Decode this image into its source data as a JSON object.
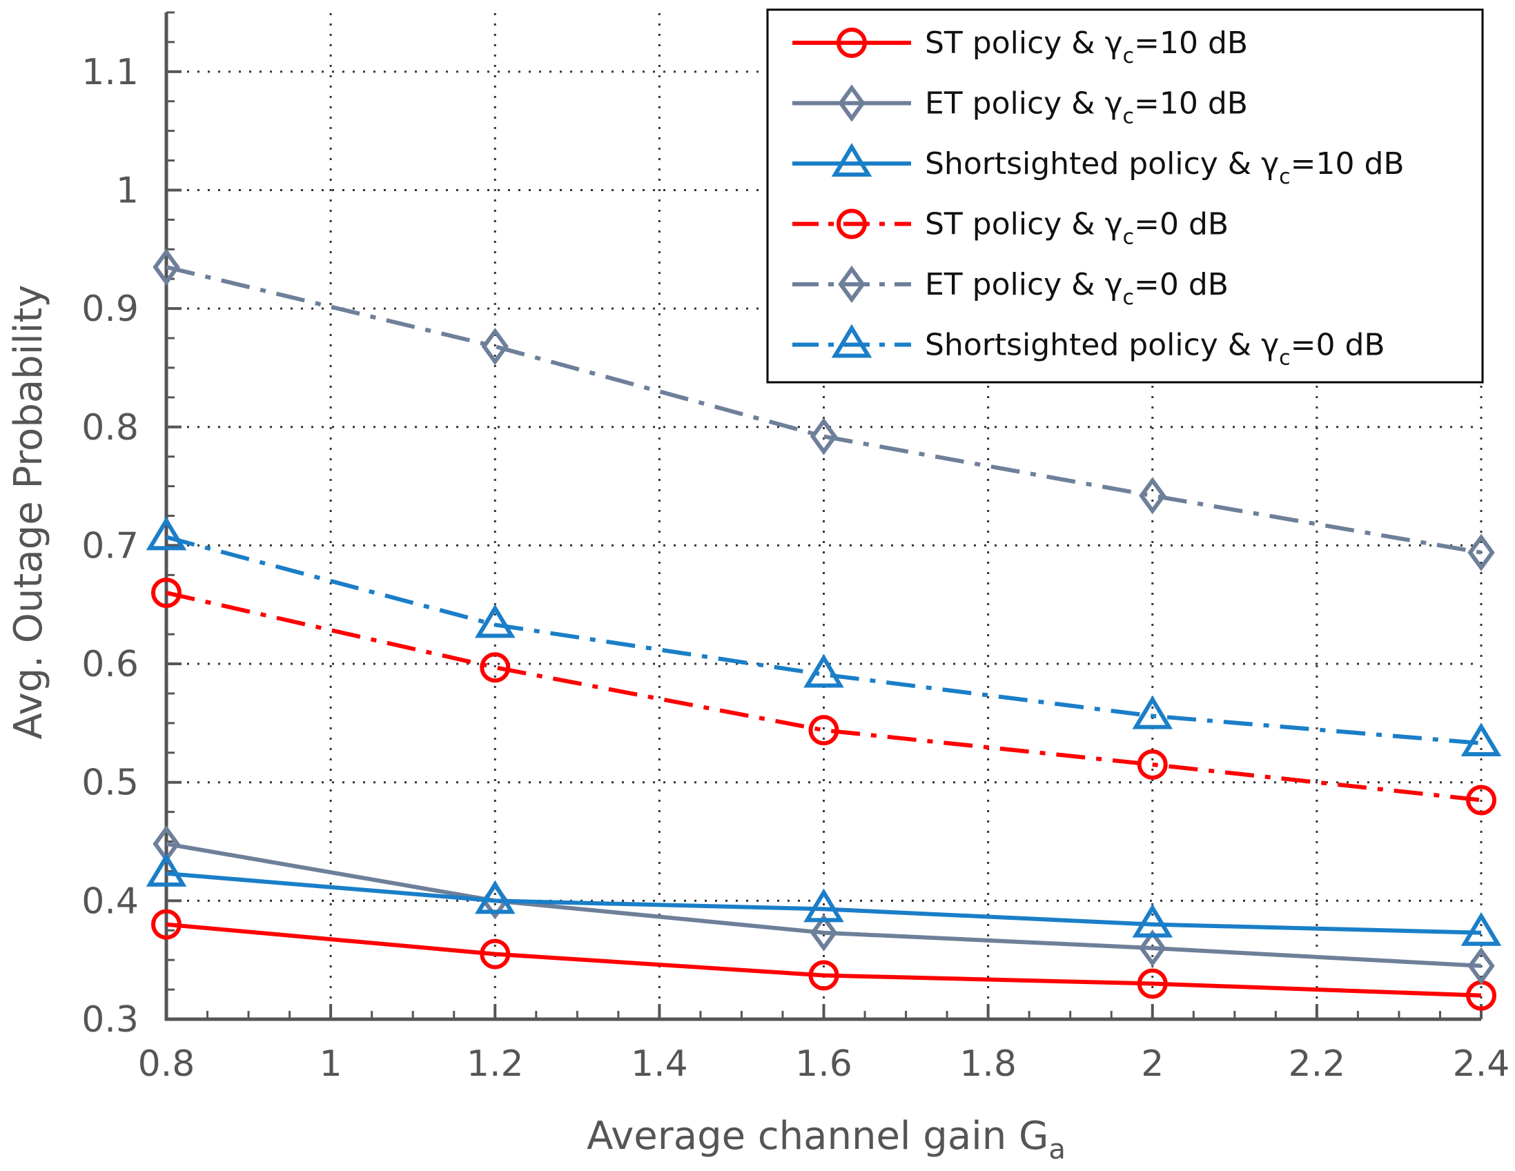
{
  "chart_data": {
    "type": "line",
    "xlabel": "Average channel gain G",
    "xlabel_sub": "a",
    "ylabel": "Avg. Outage Probability",
    "xlim": [
      0.8,
      2.4
    ],
    "ylim": [
      0.3,
      1.15
    ],
    "xticks": [
      0.8,
      1,
      1.2,
      1.4,
      1.6,
      1.8,
      2,
      2.2,
      2.4
    ],
    "xtick_labels": [
      "0.8",
      "1",
      "1.2",
      "1.4",
      "1.6",
      "1.8",
      "2",
      "2.2",
      "2.4"
    ],
    "yticks": [
      0.3,
      0.4,
      0.5,
      0.6,
      0.7,
      0.8,
      0.9,
      1,
      1.1
    ],
    "ytick_labels": [
      "0.3",
      "0.4",
      "0.5",
      "0.6",
      "0.7",
      "0.8",
      "0.9",
      "1",
      "1.1"
    ],
    "grid": true,
    "legend_position": "top-right",
    "x": [
      0.8,
      1.2,
      1.6,
      2.0,
      2.4
    ],
    "series": [
      {
        "name": "ST policy & γc=10 dB",
        "legend_prefix": "ST policy & γ",
        "legend_sub": "c",
        "legend_suffix": "=10 dB",
        "color": "#ff0000",
        "marker": "circle",
        "linestyle": "solid",
        "values": [
          0.38,
          0.355,
          0.337,
          0.33,
          0.32
        ]
      },
      {
        "name": "ET policy & γc=10 dB",
        "legend_prefix": "ET policy & γ",
        "legend_sub": "c",
        "legend_suffix": "=10 dB",
        "color": "#6e7f99",
        "marker": "diamond",
        "linestyle": "solid",
        "values": [
          0.448,
          0.4,
          0.373,
          0.36,
          0.345
        ]
      },
      {
        "name": "Shortsighted policy & γc=10 dB",
        "legend_prefix": "Shortsighted policy & γ",
        "legend_sub": "c",
        "legend_suffix": "=10 dB",
        "color": "#1a7ec8",
        "marker": "triangle",
        "linestyle": "solid",
        "values": [
          0.423,
          0.4,
          0.393,
          0.38,
          0.373
        ]
      },
      {
        "name": "ST policy & γc=0 dB",
        "legend_prefix": "ST policy & γ",
        "legend_sub": "c",
        "legend_suffix": "=0 dB",
        "color": "#ff0000",
        "marker": "circle",
        "linestyle": "dashdot",
        "values": [
          0.66,
          0.597,
          0.544,
          0.515,
          0.485
        ]
      },
      {
        "name": "ET policy & γc=0 dB",
        "legend_prefix": "ET policy & γ",
        "legend_sub": "c",
        "legend_suffix": "=0 dB",
        "color": "#6e7f99",
        "marker": "diamond",
        "linestyle": "dashdot",
        "values": [
          0.935,
          0.868,
          0.792,
          0.742,
          0.694
        ]
      },
      {
        "name": "Shortsighted policy & γc=0 dB",
        "legend_prefix": "Shortsighted policy & γ",
        "legend_sub": "c",
        "legend_suffix": "=0 dB",
        "color": "#1a7ec8",
        "marker": "triangle",
        "linestyle": "dashdot",
        "values": [
          0.707,
          0.633,
          0.591,
          0.556,
          0.533
        ]
      }
    ]
  }
}
